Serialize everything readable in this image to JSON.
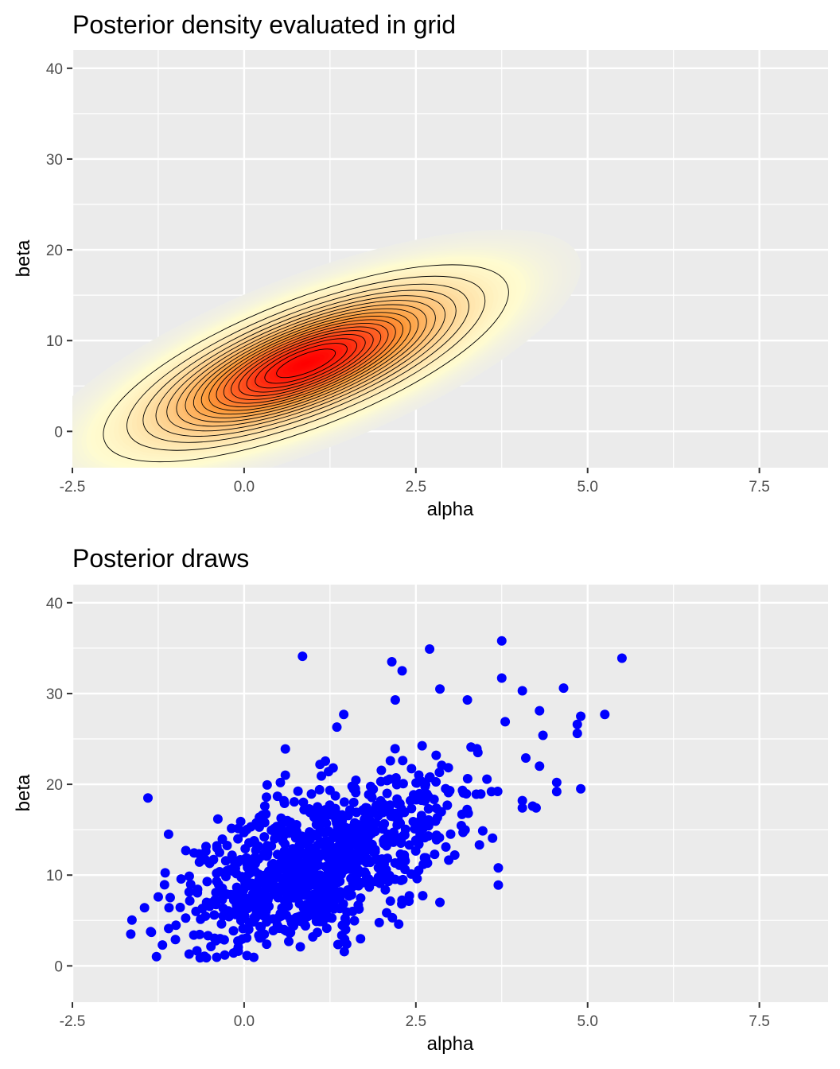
{
  "chart_data": [
    {
      "type": "contour",
      "title": "Posterior density evaluated in grid",
      "xlabel": "alpha",
      "ylabel": "beta",
      "xlim": [
        -2.5,
        8.5
      ],
      "ylim": [
        -4,
        42
      ],
      "xticks": [
        -2.5,
        0.0,
        2.5,
        5.0,
        7.5
      ],
      "xtick_labels": [
        "-2.5",
        "0.0",
        "2.5",
        "5.0",
        "7.5"
      ],
      "yticks": [
        0,
        10,
        20,
        30,
        40
      ],
      "ytick_labels": [
        "0",
        "10",
        "20",
        "30",
        "40"
      ],
      "grid": true,
      "fill_colors": {
        "low": "#fffcd0",
        "mid": "#fd9a3a",
        "high": "#ff0000"
      },
      "density": {
        "mode": [
          0.9,
          7.5
        ],
        "sd": [
          1.25,
          4.6
        ],
        "corr": 0.72
      },
      "contour_levels": 18
    },
    {
      "type": "scatter",
      "title": "Posterior draws",
      "xlabel": "alpha",
      "ylabel": "beta",
      "xlim": [
        -2.5,
        8.5
      ],
      "ylim": [
        -4,
        42
      ],
      "xticks": [
        -2.5,
        0.0,
        2.5,
        5.0,
        7.5
      ],
      "xtick_labels": [
        "-2.5",
        "0.0",
        "2.5",
        "5.0",
        "7.5"
      ],
      "yticks": [
        0,
        10,
        20,
        30,
        40
      ],
      "ytick_labels": [
        "0",
        "10",
        "20",
        "30",
        "40"
      ],
      "grid": true,
      "point_color": "#0000ff",
      "draws": {
        "n": 1000,
        "mean": [
          1.0,
          11.0
        ],
        "sd": [
          1.05,
          5.2
        ],
        "corr": 0.6
      },
      "points": [
        {
          "x": -1.65,
          "y": 3.5
        },
        {
          "x": -1.45,
          "y": 6.4
        },
        {
          "x": -1.4,
          "y": 18.5
        },
        {
          "x": -1.35,
          "y": 3.7
        },
        {
          "x": -1.25,
          "y": 7.6
        },
        {
          "x": -1.1,
          "y": 14.5
        },
        {
          "x": -1.0,
          "y": 2.9
        },
        {
          "x": -0.8,
          "y": 1.3
        },
        {
          "x": -0.55,
          "y": 0.9
        },
        {
          "x": -0.35,
          "y": 3.0
        },
        {
          "x": -0.1,
          "y": 1.7
        },
        {
          "x": -0.05,
          "y": 15.9
        },
        {
          "x": 0.85,
          "y": 34.1
        },
        {
          "x": 0.6,
          "y": 23.9
        },
        {
          "x": 0.6,
          "y": 21.0
        },
        {
          "x": 1.0,
          "y": 3.2
        },
        {
          "x": 1.45,
          "y": 27.7
        },
        {
          "x": 1.35,
          "y": 26.3
        },
        {
          "x": 2.15,
          "y": 33.5
        },
        {
          "x": 2.3,
          "y": 32.5
        },
        {
          "x": 2.2,
          "y": 29.3
        },
        {
          "x": 2.7,
          "y": 34.9
        },
        {
          "x": 2.85,
          "y": 30.5
        },
        {
          "x": 3.25,
          "y": 29.3
        },
        {
          "x": 3.75,
          "y": 35.8
        },
        {
          "x": 3.75,
          "y": 31.7
        },
        {
          "x": 3.8,
          "y": 26.9
        },
        {
          "x": 4.05,
          "y": 30.3
        },
        {
          "x": 4.3,
          "y": 28.1
        },
        {
          "x": 4.35,
          "y": 25.4
        },
        {
          "x": 4.65,
          "y": 30.6
        },
        {
          "x": 4.85,
          "y": 26.6
        },
        {
          "x": 4.85,
          "y": 25.6
        },
        {
          "x": 4.9,
          "y": 27.5
        },
        {
          "x": 5.25,
          "y": 27.7
        },
        {
          "x": 5.5,
          "y": 33.9
        },
        {
          "x": 4.9,
          "y": 19.5
        },
        {
          "x": 4.55,
          "y": 19.2
        },
        {
          "x": 4.55,
          "y": 20.2
        },
        {
          "x": 4.25,
          "y": 17.4
        },
        {
          "x": 4.2,
          "y": 17.6
        },
        {
          "x": 4.05,
          "y": 18.2
        },
        {
          "x": 4.05,
          "y": 17.4
        },
        {
          "x": 4.1,
          "y": 22.9
        },
        {
          "x": 4.3,
          "y": 22.0
        },
        {
          "x": 3.7,
          "y": 8.9
        },
        {
          "x": 3.7,
          "y": 10.8
        },
        {
          "x": 2.25,
          "y": 4.6
        },
        {
          "x": 2.85,
          "y": 7.0
        },
        {
          "x": 3.6,
          "y": 19.2
        }
      ]
    }
  ]
}
